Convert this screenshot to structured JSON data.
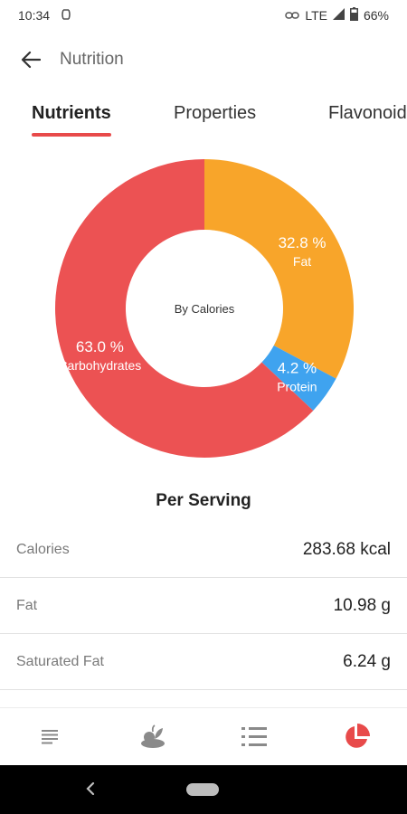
{
  "status_bar": {
    "time": "10:34",
    "network": "LTE",
    "battery": "66%"
  },
  "app_bar": {
    "title": "Nutrition"
  },
  "tabs": [
    {
      "label": "Nutrients",
      "active": true
    },
    {
      "label": "Properties",
      "active": false
    },
    {
      "label": "Flavonoids",
      "active": false
    }
  ],
  "chart_data": {
    "type": "pie",
    "variant": "donut",
    "center_label": "By Calories",
    "slices": [
      {
        "name": "Fat",
        "value": 32.8,
        "label": "32.8 %",
        "color": "#f8a52a"
      },
      {
        "name": "Protein",
        "value": 4.2,
        "label": "4.2 %",
        "color": "#3fa3ef"
      },
      {
        "name": "Carbohydrates",
        "value": 63.0,
        "label": "63.0 %",
        "color": "#ec5253"
      }
    ]
  },
  "per_serving": {
    "heading": "Per Serving",
    "rows": [
      {
        "label": "Calories",
        "value": "283.68 kcal"
      },
      {
        "label": "Fat",
        "value": "10.98 g"
      },
      {
        "label": "Saturated Fat",
        "value": "6.24 g"
      }
    ]
  },
  "bottom_nav": {
    "items": [
      {
        "icon": "notes-icon",
        "active": false
      },
      {
        "icon": "ingredients-icon",
        "active": false
      },
      {
        "icon": "steps-list-icon",
        "active": false
      },
      {
        "icon": "pie-chart-icon",
        "active": true
      }
    ],
    "active_color": "#e84a4a",
    "inactive_color": "#8a8a8a"
  }
}
